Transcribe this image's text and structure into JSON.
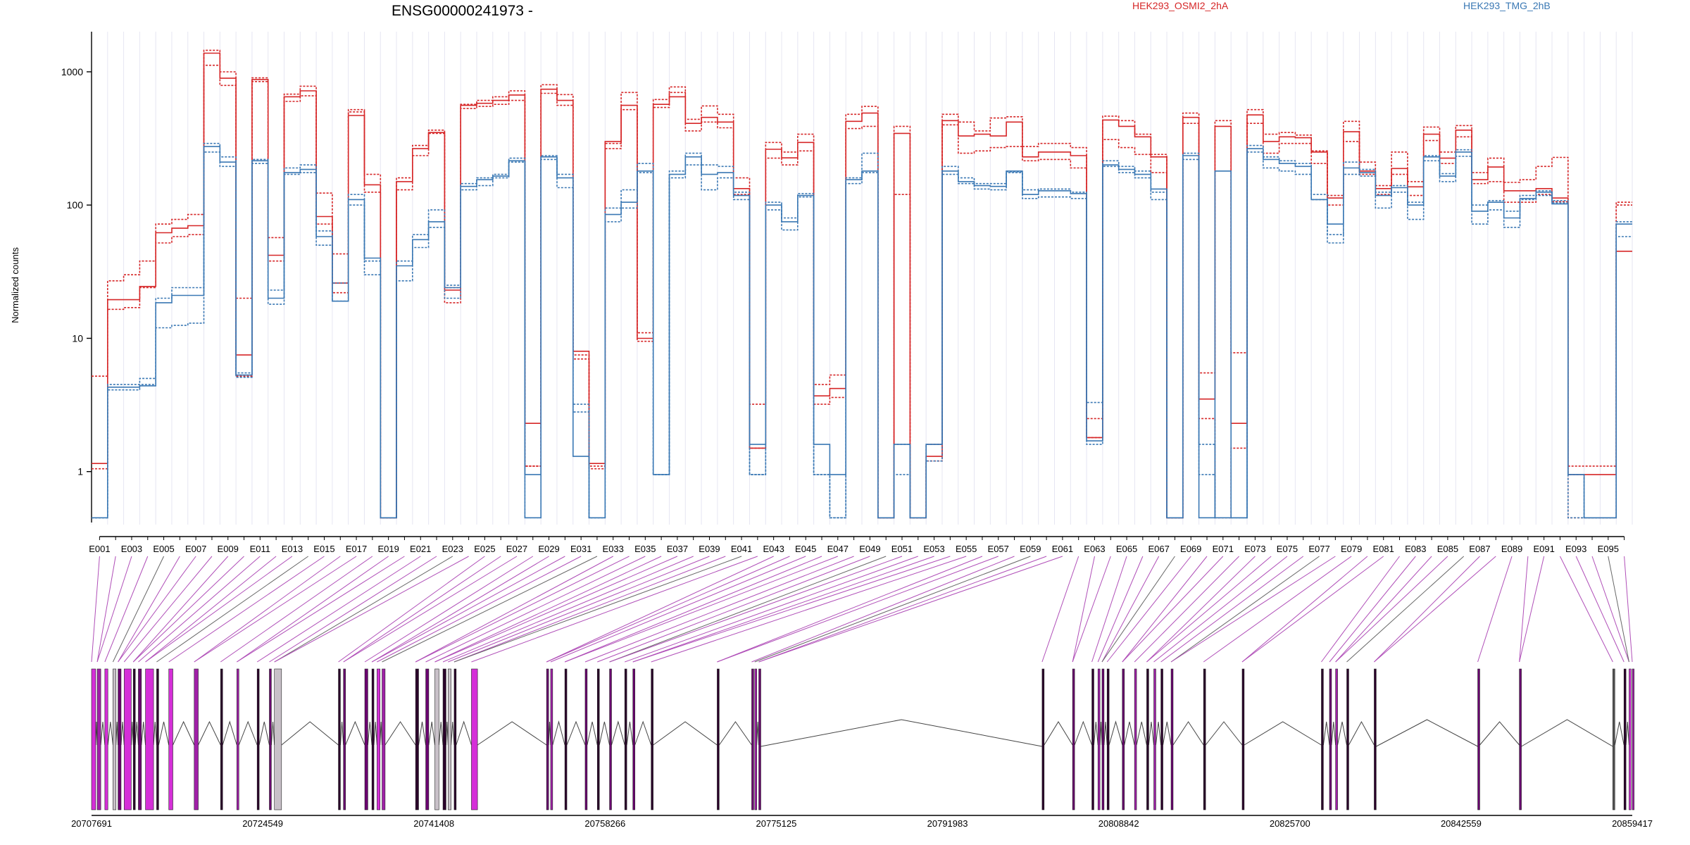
{
  "chart_data": {
    "type": "line",
    "title": "ENSG00000241973 -",
    "ylabel": "Normalized counts",
    "y_scale": "log",
    "ylim": [
      0.4,
      2000
    ],
    "y_ticks": [
      {
        "value": 1,
        "label": "1"
      },
      {
        "value": 10,
        "label": "10"
      },
      {
        "value": 100,
        "label": "100"
      },
      {
        "value": 1000,
        "label": "1000"
      }
    ],
    "exon_count": 96,
    "exon_labels": [
      "E001",
      "E003",
      "E005",
      "E007",
      "E009",
      "E011",
      "E013",
      "E015",
      "E017",
      "E019",
      "E021",
      "E023",
      "E025",
      "E027",
      "E029",
      "E031",
      "E033",
      "E035",
      "E037",
      "E039",
      "E041",
      "E043",
      "E045",
      "E047",
      "E049",
      "E051",
      "E053",
      "E055",
      "E057",
      "E059",
      "E061",
      "E063",
      "E065",
      "E067",
      "E069",
      "E071",
      "E073",
      "E075",
      "E077",
      "E079",
      "E081",
      "E083",
      "E085",
      "E087",
      "E089",
      "E091",
      "E093",
      "E095"
    ],
    "legend": [
      {
        "name": "HEK293_OSMI2_2hA",
        "color": "#d62728"
      },
      {
        "name": "HEK293_TMG_2hB",
        "color": "#3a78b4"
      }
    ],
    "series": [
      {
        "group": "HEK293_OSMI2_2hA",
        "color": "#d62728",
        "dashed": false,
        "values": [
          1.15,
          19.5,
          19.5,
          24.5,
          62,
          67,
          70,
          1380,
          895,
          7.5,
          875,
          42,
          650,
          720,
          82,
          26,
          470,
          142,
          0.45,
          150,
          265,
          350,
          23,
          560,
          580,
          610,
          670,
          2.3,
          740,
          610,
          8,
          1.15,
          300,
          560,
          10,
          570,
          650,
          410,
          455,
          420,
          133,
          1.5,
          262,
          226,
          295,
          3.7,
          4.2,
          425,
          490,
          0.45,
          345,
          0.45,
          1.3,
          430,
          330,
          340,
          330,
          420,
          230,
          250,
          250,
          235,
          1.8,
          435,
          390,
          325,
          230,
          0.45,
          455,
          3.5,
          390,
          2.3,
          475,
          300,
          325,
          320,
          250,
          113,
          355,
          180,
          133,
          188,
          137,
          340,
          225,
          365,
          155,
          193,
          128,
          128,
          133,
          113,
          0.95,
          0.95,
          0.95,
          45
        ]
      },
      {
        "group": "HEK293_OSMI2_2hA",
        "color": "#d62728",
        "dashed": true,
        "values": [
          1.05,
          16.5,
          17,
          24,
          52,
          58,
          60,
          1120,
          790,
          5.2,
          845,
          38,
          600,
          660,
          72,
          22,
          500,
          125,
          0.45,
          130,
          235,
          345,
          18.5,
          530,
          550,
          570,
          610,
          1.1,
          690,
          560,
          7,
          1.05,
          265,
          520,
          9.5,
          540,
          700,
          360,
          420,
          380,
          120,
          1.5,
          225,
          200,
          255,
          3.2,
          3.6,
          375,
          390,
          0.45,
          120,
          0.45,
          1.2,
          400,
          245,
          255,
          270,
          275,
          215,
          220,
          220,
          190,
          2.5,
          310,
          270,
          240,
          175,
          0.45,
          410,
          2.5,
          0.45,
          1.5,
          410,
          245,
          290,
          290,
          205,
          100,
          300,
          170,
          120,
          170,
          118,
          305,
          205,
          325,
          145,
          150,
          105,
          105,
          120,
          106,
          0.45,
          0.45,
          0.45,
          100
        ]
      },
      {
        "group": "HEK293_OSMI2_2hA",
        "color": "#d62728",
        "dashed": true,
        "values": [
          5.2,
          27,
          30,
          38,
          72,
          78,
          85,
          1450,
          1000,
          20,
          900,
          57,
          680,
          780,
          123,
          43,
          520,
          170,
          0.45,
          160,
          280,
          365,
          24,
          570,
          610,
          650,
          720,
          1.1,
          800,
          675,
          7.5,
          1.1,
          290,
          700,
          11,
          620,
          770,
          440,
          555,
          480,
          160,
          3.2,
          295,
          250,
          340,
          4.5,
          5.3,
          480,
          550,
          0.45,
          390,
          0.45,
          1.6,
          480,
          420,
          360,
          450,
          460,
          275,
          290,
          290,
          270,
          1.8,
          465,
          430,
          340,
          240,
          0.45,
          490,
          5.5,
          430,
          7.8,
          520,
          340,
          350,
          335,
          255,
          118,
          425,
          210,
          140,
          250,
          150,
          385,
          250,
          395,
          175,
          225,
          148,
          155,
          195,
          228,
          1.1,
          1.1,
          1.1,
          105
        ]
      },
      {
        "group": "HEK293_TMG_2hB",
        "color": "#3a78b4",
        "dashed": false,
        "values": [
          0.45,
          4.3,
          4.3,
          4.4,
          18.5,
          21,
          21,
          275,
          210,
          5.3,
          215,
          20,
          175,
          185,
          58,
          19,
          110,
          40,
          0.45,
          35,
          55,
          75,
          24,
          138,
          155,
          165,
          215,
          0.95,
          230,
          160,
          1.3,
          0.45,
          85,
          105,
          180,
          0.95,
          170,
          230,
          170,
          175,
          118,
          1.6,
          100,
          75,
          118,
          1.6,
          0.95,
          155,
          180,
          0.45,
          1.6,
          0.45,
          1.6,
          180,
          150,
          140,
          138,
          180,
          120,
          128,
          128,
          122,
          1.7,
          200,
          185,
          170,
          132,
          0.45,
          235,
          0.45,
          180,
          0.45,
          265,
          220,
          205,
          195,
          110,
          72,
          190,
          175,
          118,
          135,
          100,
          230,
          165,
          250,
          90,
          105,
          80,
          112,
          125,
          102,
          0.95,
          0.45,
          0.45,
          72
        ]
      },
      {
        "group": "HEK293_TMG_2hB",
        "color": "#3a78b4",
        "dashed": true,
        "values": [
          0.45,
          4.5,
          4.5,
          5,
          20,
          24,
          24,
          290,
          230,
          5.5,
          220,
          23,
          190,
          200,
          64,
          26,
          120,
          38,
          0.45,
          38,
          60,
          92,
          25,
          145,
          160,
          170,
          225,
          0.45,
          235,
          170,
          2.8,
          0.45,
          95,
          130,
          205,
          0.95,
          180,
          245,
          200,
          195,
          125,
          0.95,
          105,
          80,
          122,
          0.95,
          0.45,
          160,
          245,
          0.45,
          1.6,
          0.45,
          1.6,
          195,
          160,
          145,
          145,
          178,
          130,
          132,
          132,
          125,
          3.3,
          215,
          195,
          180,
          125,
          0.45,
          245,
          1.6,
          0.45,
          0.45,
          280,
          230,
          215,
          205,
          120,
          60,
          210,
          185,
          125,
          140,
          105,
          235,
          172,
          260,
          100,
          108,
          90,
          118,
          128,
          108,
          0.45,
          0.45,
          0.45,
          75
        ]
      },
      {
        "group": "HEK293_TMG_2hB",
        "color": "#3a78b4",
        "dashed": true,
        "values": [
          0.45,
          4.1,
          4.1,
          4.5,
          12,
          12.5,
          13,
          250,
          195,
          5.1,
          205,
          18,
          170,
          175,
          50,
          19,
          100,
          30,
          0.45,
          27,
          48,
          68,
          20,
          130,
          140,
          160,
          210,
          0.45,
          220,
          135,
          3.2,
          0.45,
          75,
          95,
          175,
          0.95,
          160,
          200,
          130,
          160,
          110,
          0.95,
          92,
          65,
          115,
          0.95,
          0.45,
          145,
          175,
          0.45,
          0.95,
          0.45,
          1.2,
          170,
          145,
          132,
          130,
          175,
          112,
          115,
          115,
          112,
          1.6,
          195,
          175,
          160,
          110,
          0.45,
          220,
          0.95,
          0.45,
          0.45,
          250,
          190,
          180,
          170,
          110,
          52,
          170,
          165,
          95,
          125,
          78,
          215,
          150,
          232,
          72,
          92,
          68,
          110,
          118,
          104,
          0.95,
          0.45,
          0.45,
          58
        ]
      }
    ],
    "genomic_ticks": [
      "20707691",
      "20724549",
      "20741408",
      "20758266",
      "20775125",
      "20791983",
      "20808842",
      "20825700",
      "20842559",
      "20859417"
    ],
    "genomic_range": [
      20707691,
      20859417
    ],
    "gene_model_exons": [
      [
        20707691,
        20708100,
        "#d52fd8"
      ],
      [
        20708250,
        20708600,
        "#a020a8"
      ],
      [
        20709000,
        20709300,
        "#d52fd8"
      ],
      [
        20709800,
        20710100,
        "#c8c0c8"
      ],
      [
        20710300,
        20710600,
        "#6a0070"
      ],
      [
        20710900,
        20711600,
        "#d52fd8"
      ],
      [
        20711800,
        20712000,
        "#2a002a"
      ],
      [
        20712300,
        20712600,
        "#6a0070"
      ],
      [
        20713000,
        20713800,
        "#d52fd8"
      ],
      [
        20714100,
        20714300,
        "#2a002a"
      ],
      [
        20715300,
        20715700,
        "#d52fd8"
      ],
      [
        20717800,
        20718200,
        "#a020a8"
      ],
      [
        20720400,
        20720600,
        "#2a002a"
      ],
      [
        20722000,
        20722200,
        "#a020a8"
      ],
      [
        20724000,
        20724200,
        "#2a002a"
      ],
      [
        20725200,
        20725400,
        "#6a0070"
      ],
      [
        20725700,
        20726400,
        "#c8c0c8"
      ],
      [
        20732000,
        20732200,
        "#2a002a"
      ],
      [
        20732500,
        20732700,
        "#6a0070"
      ],
      [
        20734600,
        20734900,
        "#6a0070"
      ],
      [
        20735300,
        20735500,
        "#2a002a"
      ],
      [
        20735800,
        20736100,
        "#d52fd8"
      ],
      [
        20736300,
        20736600,
        "#a020a8"
      ],
      [
        20739600,
        20739900,
        "#2a002a"
      ],
      [
        20740600,
        20740900,
        "#6a0070"
      ],
      [
        20741500,
        20741900,
        "#c8c0c8"
      ],
      [
        20742300,
        20742600,
        "#2a002a"
      ],
      [
        20742800,
        20743100,
        "#c8c0c8"
      ],
      [
        20743400,
        20743600,
        "#2a002a"
      ],
      [
        20745100,
        20745700,
        "#d52fd8"
      ],
      [
        20752500,
        20752700,
        "#6a0070"
      ],
      [
        20752900,
        20753100,
        "#a020a8"
      ],
      [
        20754300,
        20754500,
        "#2a002a"
      ],
      [
        20756300,
        20756500,
        "#6a0070"
      ],
      [
        20757500,
        20757700,
        "#2a002a"
      ],
      [
        20758700,
        20758900,
        "#6a0070"
      ],
      [
        20760200,
        20760400,
        "#2a002a"
      ],
      [
        20761000,
        20761200,
        "#6a0070"
      ],
      [
        20762800,
        20763000,
        "#2a002a"
      ],
      [
        20769300,
        20769500,
        "#2a002a"
      ],
      [
        20772700,
        20772900,
        "#6a0070"
      ],
      [
        20773000,
        20773200,
        "#a020a8"
      ],
      [
        20773400,
        20773600,
        "#6a0070"
      ],
      [
        20801300,
        20801500,
        "#2a002a"
      ],
      [
        20804300,
        20804500,
        "#6a0070"
      ],
      [
        20806200,
        20806400,
        "#2a002a"
      ],
      [
        20806800,
        20807000,
        "#a020a8"
      ],
      [
        20807200,
        20807400,
        "#6a0070"
      ],
      [
        20807700,
        20807900,
        "#2a002a"
      ],
      [
        20809200,
        20809400,
        "#6a0070"
      ],
      [
        20810400,
        20810600,
        "#a020a8"
      ],
      [
        20811600,
        20811800,
        "#2a002a"
      ],
      [
        20812300,
        20812500,
        "#a020a8"
      ],
      [
        20813000,
        20813200,
        "#2a002a"
      ],
      [
        20814000,
        20814200,
        "#6a0070"
      ],
      [
        20817200,
        20817400,
        "#2a002a"
      ],
      [
        20821000,
        20821200,
        "#2a002a"
      ],
      [
        20828800,
        20829000,
        "#2a002a"
      ],
      [
        20829600,
        20829800,
        "#6a0070"
      ],
      [
        20830200,
        20830400,
        "#a020a8"
      ],
      [
        20831300,
        20831500,
        "#2a002a"
      ],
      [
        20834000,
        20834200,
        "#2a002a"
      ],
      [
        20844200,
        20844400,
        "#6a0070"
      ],
      [
        20848300,
        20848500,
        "#6a0070"
      ],
      [
        20857500,
        20857700,
        "#555555"
      ],
      [
        20858600,
        20858800,
        "#2a002a"
      ],
      [
        20859100,
        20859300,
        "#d52fd8"
      ],
      [
        20859417,
        20859600,
        "#a020a8"
      ]
    ]
  }
}
